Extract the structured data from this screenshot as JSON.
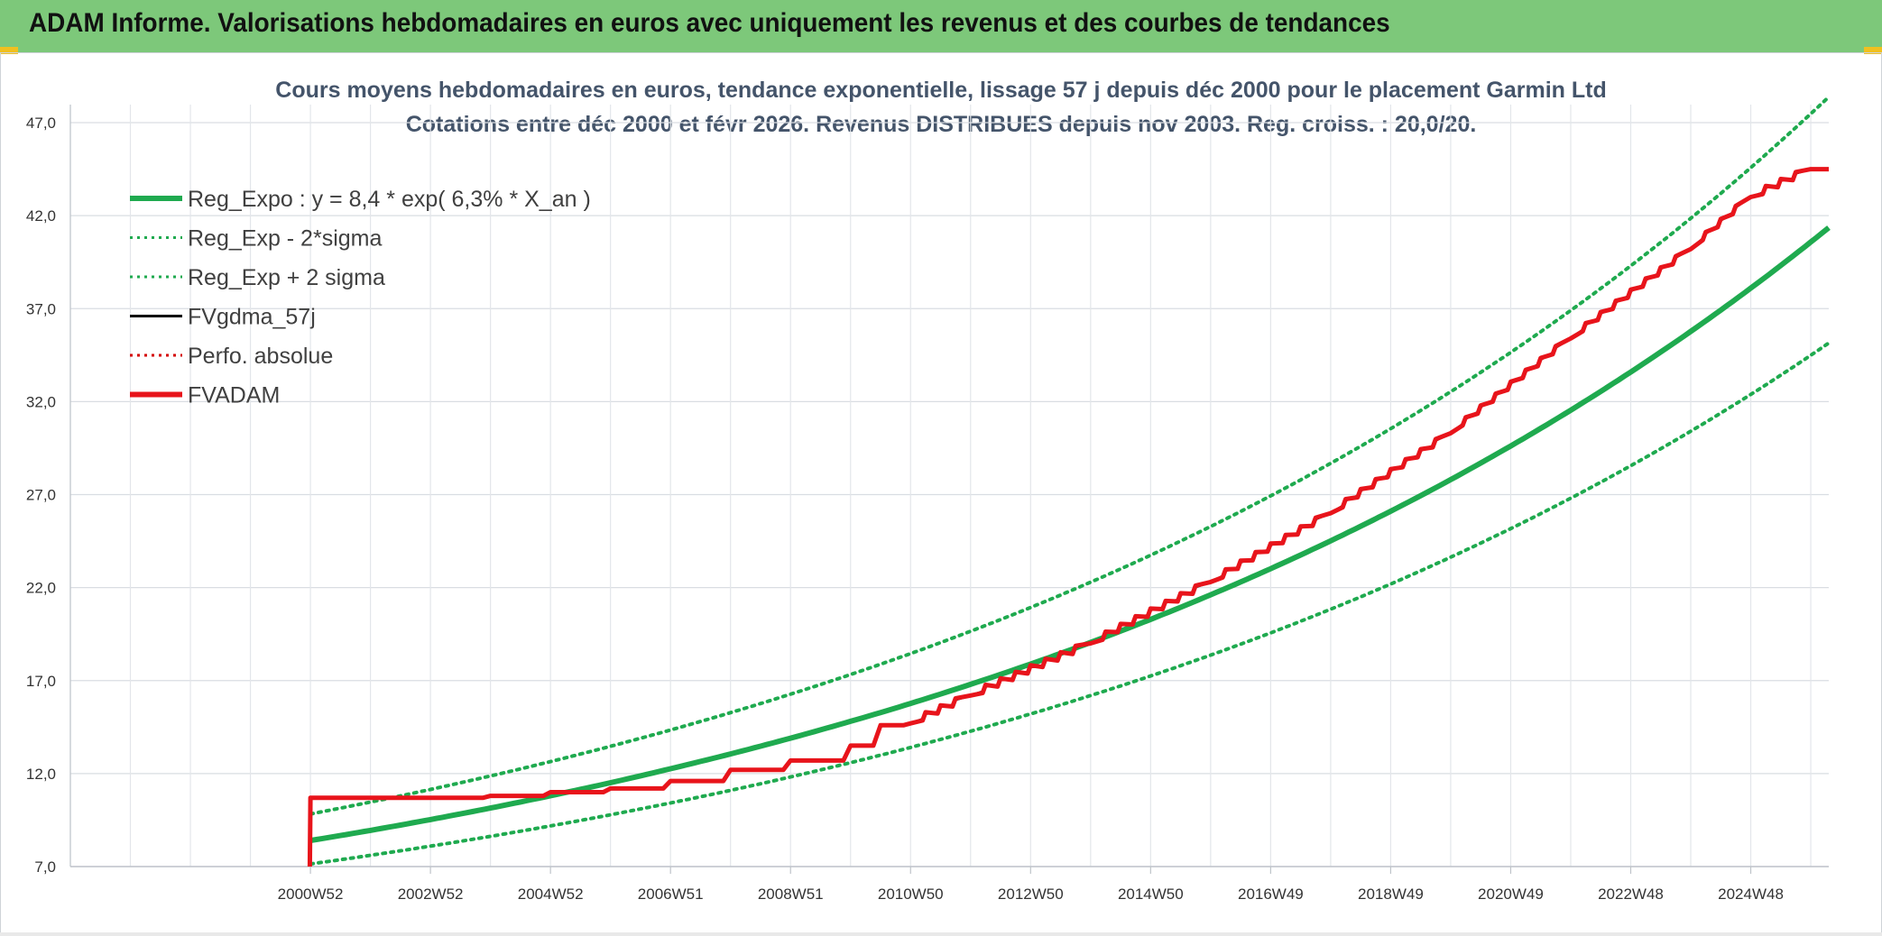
{
  "banner": {
    "title": "ADAM Informe. Valorisations hebdomadaires en euros avec uniquement les revenus et des courbes de tendances"
  },
  "chart_data": {
    "type": "line",
    "title_line1": "Cours moyens hebdomadaires en euros, tendance exponentielle, lissage 57 j depuis déc 2000 pour le placement Garmin Ltd",
    "title_line2": "Cotations entre déc 2000 et févr 2026. Revenus DISTRIBUES depuis nov 2003. Reg. croiss. : 20,0/20.",
    "x_tick_labels": [
      "2000W52",
      "2002W52",
      "2004W52",
      "2006W51",
      "2008W51",
      "2010W50",
      "2012W50",
      "2014W50",
      "2016W49",
      "2018W49",
      "2020W49",
      "2022W48",
      "2024W48"
    ],
    "x_range_years": [
      1997.0,
      2026.3
    ],
    "y_tick_labels": [
      "7,0",
      "12,0",
      "17,0",
      "22,0",
      "27,0",
      "32,0",
      "37,0",
      "42,0",
      "47,0"
    ],
    "ylim": [
      7,
      47
    ],
    "grid": true,
    "legend_position": "top-left",
    "regression": {
      "a": 8.4,
      "rate": 0.063,
      "sigma_factor_low": 0.85,
      "sigma_factor_high": 1.17,
      "x_start": 2001.0,
      "x_end": 2026.3
    },
    "series": [
      {
        "name": "Reg_Expo : y = 8,4 * exp( 6,3% *  X_an )",
        "color": "#1faa4f",
        "style": "solid-thick"
      },
      {
        "name": "Reg_Exp - 2*sigma",
        "color": "#1faa4f",
        "style": "dotted"
      },
      {
        "name": "Reg_Exp + 2 sigma",
        "color": "#1faa4f",
        "style": "dotted"
      },
      {
        "name": "FVgdma_57j",
        "color": "#000000",
        "style": "solid"
      },
      {
        "name": "Perfo. absolue",
        "color": "#d40000",
        "style": "dotted"
      },
      {
        "name": "FVADAM",
        "color": "#e8141b",
        "style": "solid-thick"
      }
    ],
    "fvadam_points": [
      [
        2000.99,
        7.0
      ],
      [
        2001.0,
        10.7
      ],
      [
        2004.0,
        10.8
      ],
      [
        2005.0,
        11.0
      ],
      [
        2006.0,
        11.2
      ],
      [
        2007.0,
        11.6
      ],
      [
        2008.0,
        12.2
      ],
      [
        2009.0,
        12.7
      ],
      [
        2010.0,
        13.5
      ],
      [
        2010.5,
        14.6
      ],
      [
        2011.0,
        14.7
      ],
      [
        2012.0,
        16.2
      ],
      [
        2014.0,
        19.0
      ],
      [
        2016.0,
        22.3
      ],
      [
        2018.0,
        26.0
      ],
      [
        2020.0,
        30.3
      ],
      [
        2022.0,
        35.4
      ],
      [
        2024.0,
        40.2
      ],
      [
        2025.0,
        43.0
      ],
      [
        2026.0,
        44.5
      ],
      [
        2026.3,
        44.5
      ]
    ]
  }
}
